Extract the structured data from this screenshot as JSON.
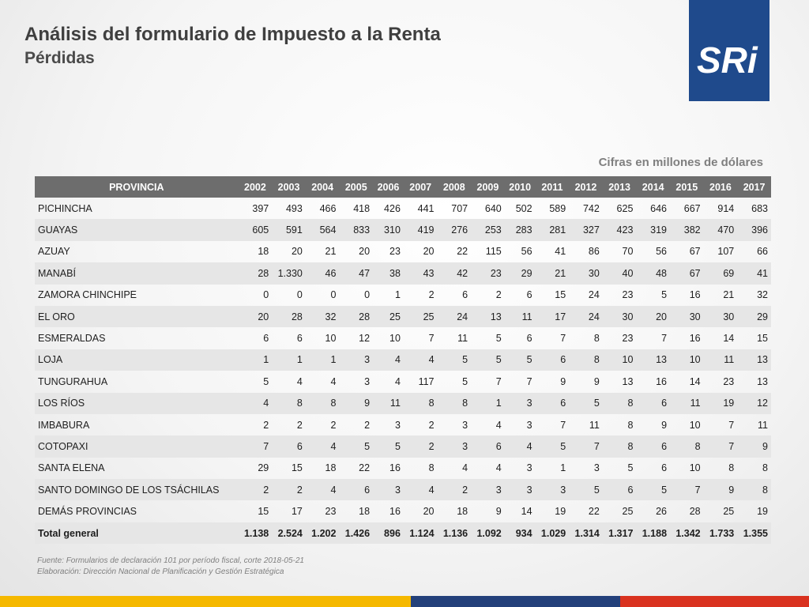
{
  "header": {
    "title": "Análisis del formulario de Impuesto a la Renta",
    "subtitle": "Pérdidas"
  },
  "logo": {
    "text": "SRi"
  },
  "units_note": "Cifras en millones de dólares",
  "table": {
    "province_header": "PROVINCIA",
    "years": [
      "2002",
      "2003",
      "2004",
      "2005",
      "2006",
      "2007",
      "2008",
      "2009",
      "2010",
      "2011",
      "2012",
      "2013",
      "2014",
      "2015",
      "2016",
      "2017"
    ],
    "rows": [
      {
        "province": "PICHINCHA",
        "values": [
          "397",
          "493",
          "466",
          "418",
          "426",
          "441",
          "707",
          "640",
          "502",
          "589",
          "742",
          "625",
          "646",
          "667",
          "914",
          "683"
        ]
      },
      {
        "province": "GUAYAS",
        "values": [
          "605",
          "591",
          "564",
          "833",
          "310",
          "419",
          "276",
          "253",
          "283",
          "281",
          "327",
          "423",
          "319",
          "382",
          "470",
          "396"
        ]
      },
      {
        "province": "AZUAY",
        "values": [
          "18",
          "20",
          "21",
          "20",
          "23",
          "20",
          "22",
          "115",
          "56",
          "41",
          "86",
          "70",
          "56",
          "67",
          "107",
          "66"
        ]
      },
      {
        "province": "MANABÍ",
        "values": [
          "28",
          "1.330",
          "46",
          "47",
          "38",
          "43",
          "42",
          "23",
          "29",
          "21",
          "30",
          "40",
          "48",
          "67",
          "69",
          "41"
        ]
      },
      {
        "province": "ZAMORA CHINCHIPE",
        "values": [
          "0",
          "0",
          "0",
          "0",
          "1",
          "2",
          "6",
          "2",
          "6",
          "15",
          "24",
          "23",
          "5",
          "16",
          "21",
          "32"
        ]
      },
      {
        "province": "EL ORO",
        "values": [
          "20",
          "28",
          "32",
          "28",
          "25",
          "25",
          "24",
          "13",
          "11",
          "17",
          "24",
          "30",
          "20",
          "30",
          "30",
          "29"
        ]
      },
      {
        "province": "ESMERALDAS",
        "values": [
          "6",
          "6",
          "10",
          "12",
          "10",
          "7",
          "11",
          "5",
          "6",
          "7",
          "8",
          "23",
          "7",
          "16",
          "14",
          "15"
        ]
      },
      {
        "province": "LOJA",
        "values": [
          "1",
          "1",
          "1",
          "3",
          "4",
          "4",
          "5",
          "5",
          "5",
          "6",
          "8",
          "10",
          "13",
          "10",
          "11",
          "13"
        ]
      },
      {
        "province": "TUNGURAHUA",
        "values": [
          "5",
          "4",
          "4",
          "3",
          "4",
          "117",
          "5",
          "7",
          "7",
          "9",
          "9",
          "13",
          "16",
          "14",
          "23",
          "13"
        ]
      },
      {
        "province": "LOS RÍOS",
        "values": [
          "4",
          "8",
          "8",
          "9",
          "11",
          "8",
          "8",
          "1",
          "3",
          "6",
          "5",
          "8",
          "6",
          "11",
          "19",
          "12"
        ]
      },
      {
        "province": "IMBABURA",
        "values": [
          "2",
          "2",
          "2",
          "2",
          "3",
          "2",
          "3",
          "4",
          "3",
          "7",
          "11",
          "8",
          "9",
          "10",
          "7",
          "11"
        ]
      },
      {
        "province": "COTOPAXI",
        "values": [
          "7",
          "6",
          "4",
          "5",
          "5",
          "2",
          "3",
          "6",
          "4",
          "5",
          "7",
          "8",
          "6",
          "8",
          "7",
          "9"
        ]
      },
      {
        "province": "SANTA ELENA",
        "values": [
          "29",
          "15",
          "18",
          "22",
          "16",
          "8",
          "4",
          "4",
          "3",
          "1",
          "3",
          "5",
          "6",
          "10",
          "8",
          "8"
        ]
      },
      {
        "province": "SANTO DOMINGO DE LOS TSÁCHILAS",
        "values": [
          "2",
          "2",
          "4",
          "6",
          "3",
          "4",
          "2",
          "3",
          "3",
          "3",
          "5",
          "6",
          "5",
          "7",
          "9",
          "8"
        ]
      },
      {
        "province": "DEMÁS PROVINCIAS",
        "values": [
          "15",
          "17",
          "23",
          "18",
          "16",
          "20",
          "18",
          "9",
          "14",
          "19",
          "22",
          "25",
          "26",
          "28",
          "25",
          "19"
        ]
      }
    ],
    "total": {
      "province": "Total general",
      "values": [
        "1.138",
        "2.524",
        "1.202",
        "1.426",
        "896",
        "1.124",
        "1.136",
        "1.092",
        "934",
        "1.029",
        "1.314",
        "1.317",
        "1.188",
        "1.342",
        "1.733",
        "1.355"
      ]
    }
  },
  "footer": {
    "source": "Fuente: Formularios de declaración 101 por período fiscal, corte 2018-05-21",
    "prepared_by": "Elaboración: Dirección Nacional de Planificación y Gestión Estratégica"
  },
  "colors": {
    "header_gray": "#6d6d6d",
    "total_row": "#b9cde5",
    "logo_blue": "#1f4a8c",
    "bar_yellow": "#f5b800",
    "bar_blue": "#23407a",
    "bar_red": "#d9321f"
  }
}
